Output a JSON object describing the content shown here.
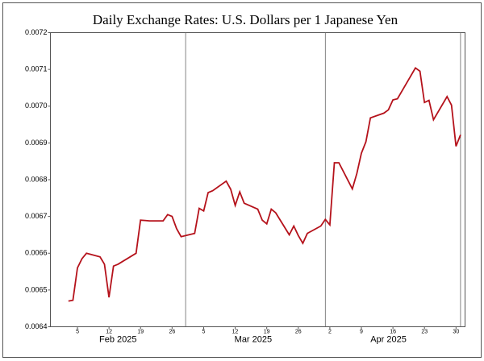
{
  "chart_data": {
    "type": "line",
    "title": "Daily Exchange Rates: U.S. Dollars per 1 Japanese Yen",
    "x": [
      "2025-02-03",
      "2025-02-04",
      "2025-02-05",
      "2025-02-06",
      "2025-02-07",
      "2025-02-10",
      "2025-02-11",
      "2025-02-12",
      "2025-02-13",
      "2025-02-14",
      "2025-02-18",
      "2025-02-19",
      "2025-02-20",
      "2025-02-21",
      "2025-02-24",
      "2025-02-25",
      "2025-02-26",
      "2025-02-27",
      "2025-02-28",
      "2025-03-03",
      "2025-03-04",
      "2025-03-05",
      "2025-03-06",
      "2025-03-07",
      "2025-03-10",
      "2025-03-11",
      "2025-03-12",
      "2025-03-13",
      "2025-03-14",
      "2025-03-17",
      "2025-03-18",
      "2025-03-19",
      "2025-03-20",
      "2025-03-21",
      "2025-03-24",
      "2025-03-25",
      "2025-03-26",
      "2025-03-27",
      "2025-03-28",
      "2025-03-31",
      "2025-04-01",
      "2025-04-02",
      "2025-04-03",
      "2025-04-04",
      "2025-04-07",
      "2025-04-08",
      "2025-04-09",
      "2025-04-10",
      "2025-04-11",
      "2025-04-14",
      "2025-04-15",
      "2025-04-16",
      "2025-04-17",
      "2025-04-21",
      "2025-04-22",
      "2025-04-23",
      "2025-04-24",
      "2025-04-25",
      "2025-04-28",
      "2025-04-29",
      "2025-04-30",
      "2025-05-01"
    ],
    "series": [
      {
        "color": "#b5121b",
        "values": [
          0.00647,
          0.006472,
          0.00656,
          0.006585,
          0.0066,
          0.00659,
          0.00657,
          0.00648,
          0.006565,
          0.00657,
          0.0066,
          0.00669,
          0.006689,
          0.006688,
          0.006688,
          0.006705,
          0.0067,
          0.006667,
          0.006645,
          0.006654,
          0.006722,
          0.006715,
          0.006765,
          0.00677,
          0.006796,
          0.006774,
          0.00673,
          0.006767,
          0.006736,
          0.00672,
          0.00669,
          0.00668,
          0.00672,
          0.00671,
          0.00665,
          0.006674,
          0.006648,
          0.006627,
          0.006654,
          0.006674,
          0.006692,
          0.006677,
          0.006846,
          0.006846,
          0.006775,
          0.006817,
          0.006872,
          0.006903,
          0.006968,
          0.006981,
          0.00699,
          0.007017,
          0.00702,
          0.007104,
          0.007095,
          0.00701,
          0.007016,
          0.006963,
          0.007026,
          0.007003,
          0.006891,
          0.006922
        ]
      }
    ],
    "ylim": [
      0.0064,
      0.0072
    ],
    "yticks": [
      0.0064,
      0.0065,
      0.0066,
      0.0067,
      0.0068,
      0.0069,
      {
        "value": 0.007,
        "label": "0.0070"
      },
      0.0071,
      0.0072
    ],
    "xlim": [
      "2025-01-30",
      "2025-05-02"
    ],
    "xticks": [
      {
        "value": "2025-02-05",
        "label": "5"
      },
      {
        "value": "2025-02-12",
        "label": "12"
      },
      {
        "value": "2025-02-19",
        "label": "19"
      },
      {
        "value": "2025-02-26",
        "label": "26"
      },
      {
        "value": "2025-03-05",
        "label": "5"
      },
      {
        "value": "2025-03-12",
        "label": "12"
      },
      {
        "value": "2025-03-19",
        "label": "19"
      },
      {
        "value": "2025-03-26",
        "label": "26"
      },
      {
        "value": "2025-04-02",
        "label": "2"
      },
      {
        "value": "2025-04-09",
        "label": "9"
      },
      {
        "value": "2025-04-16",
        "label": "16"
      },
      {
        "value": "2025-04-23",
        "label": "23"
      },
      {
        "value": "2025-04-30",
        "label": "30"
      }
    ],
    "month_labels": [
      {
        "value": "2025-02-14",
        "label": "Feb 2025"
      },
      {
        "value": "2025-03-16",
        "label": "Mar 2025"
      },
      {
        "value": "2025-04-15",
        "label": "Apr 2025"
      }
    ],
    "xgrid": [
      "2025-03-01",
      "2025-04-01",
      "2025-05-01"
    ]
  }
}
